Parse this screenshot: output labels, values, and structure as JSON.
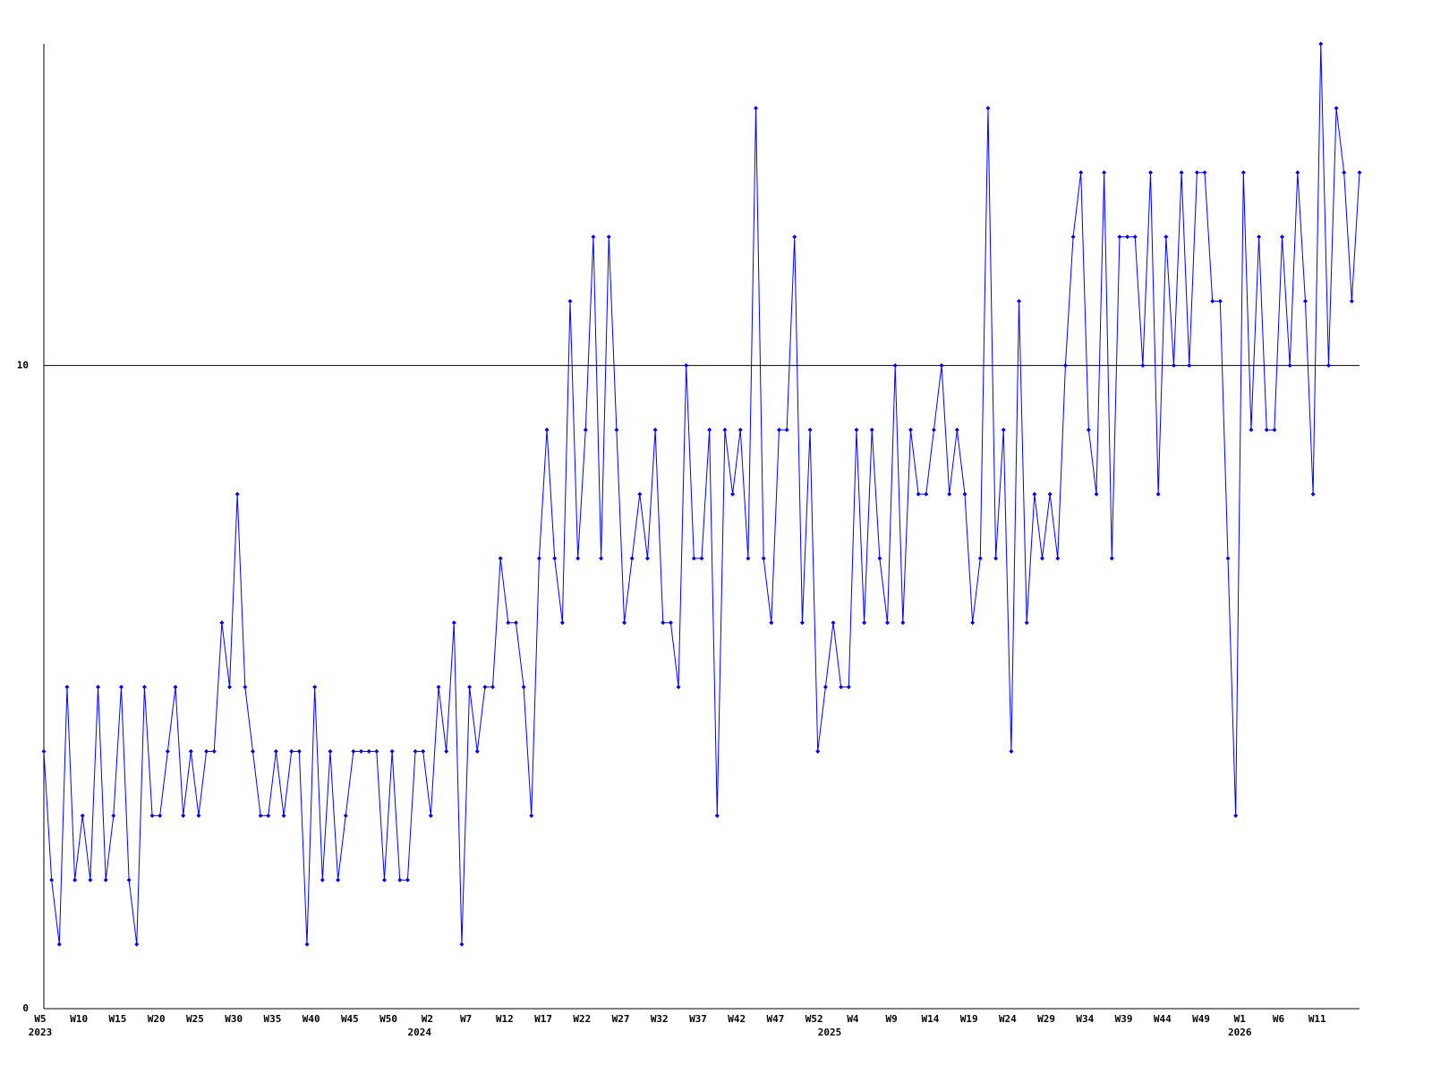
{
  "chart_data": {
    "type": "line",
    "categories": [
      "W5",
      null,
      null,
      null,
      null,
      "W10",
      null,
      null,
      null,
      null,
      "W15",
      null,
      null,
      null,
      null,
      "W20",
      null,
      null,
      null,
      null,
      "W25",
      null,
      null,
      null,
      null,
      "W30",
      null,
      null,
      null,
      null,
      "W35",
      null,
      null,
      null,
      null,
      "W40",
      null,
      null,
      null,
      null,
      "W45",
      null,
      null,
      null,
      null,
      "W50",
      null,
      null,
      null,
      null,
      "W2",
      null,
      null,
      null,
      null,
      "W7",
      null,
      null,
      null,
      null,
      "W12",
      null,
      null,
      null,
      null,
      "W17",
      null,
      null,
      null,
      null,
      "W22",
      null,
      null,
      null,
      null,
      "W27",
      null,
      null,
      null,
      null,
      "W32",
      null,
      null,
      null,
      null,
      "W37",
      null,
      null,
      null,
      null,
      "W42",
      null,
      null,
      null,
      null,
      "W47",
      null,
      null,
      null,
      null,
      "W52",
      null,
      null,
      null,
      null,
      "W4",
      null,
      null,
      null,
      null,
      "W9",
      null,
      null,
      null,
      null,
      "W14",
      null,
      null,
      null,
      null,
      "W19",
      null,
      null,
      null,
      null,
      "W24",
      null,
      null,
      null,
      null,
      "W29",
      null,
      null,
      null,
      null,
      "W34",
      null,
      null,
      null,
      null,
      "W39",
      null,
      null,
      null,
      null,
      "W44",
      null,
      null,
      null,
      null,
      "W49",
      null,
      null,
      null,
      null,
      "W1",
      null,
      null,
      null,
      null,
      "W6",
      null,
      null,
      null,
      null,
      "W11",
      null,
      null,
      null,
      null,
      null
    ],
    "year_labels": [
      "2023",
      null,
      null,
      null,
      null,
      null,
      null,
      null,
      null,
      null,
      null,
      null,
      null,
      null,
      null,
      null,
      null,
      null,
      null,
      null,
      null,
      null,
      null,
      null,
      null,
      null,
      null,
      null,
      null,
      null,
      null,
      null,
      null,
      null,
      null,
      null,
      null,
      null,
      null,
      null,
      null,
      null,
      null,
      null,
      null,
      null,
      null,
      null,
      null,
      "2024",
      null,
      null,
      null,
      null,
      null,
      null,
      null,
      null,
      null,
      null,
      null,
      null,
      null,
      null,
      null,
      null,
      null,
      null,
      null,
      null,
      null,
      null,
      null,
      null,
      null,
      null,
      null,
      null,
      null,
      null,
      null,
      null,
      null,
      null,
      null,
      null,
      null,
      null,
      null,
      null,
      null,
      null,
      null,
      null,
      null,
      null,
      null,
      null,
      null,
      null,
      null,
      null,
      "2025",
      null,
      null,
      null,
      null,
      null,
      null,
      null,
      null,
      null,
      null,
      null,
      null,
      null,
      null,
      null,
      null,
      null,
      null,
      null,
      null,
      null,
      null,
      null,
      null,
      null,
      null,
      null,
      null,
      null,
      null,
      null,
      null,
      null,
      null,
      null,
      null,
      null,
      null,
      null,
      null,
      null,
      null,
      null,
      null,
      null,
      null,
      null,
      null,
      null,
      null,
      null,
      null,
      "2026",
      null,
      null,
      null,
      null,
      null,
      null,
      null,
      null,
      null,
      null,
      null,
      null,
      null,
      null,
      null
    ],
    "values": [
      4,
      2,
      1,
      5,
      2,
      3,
      2,
      5,
      2,
      3,
      5,
      2,
      1,
      5,
      3,
      3,
      4,
      5,
      3,
      4,
      3,
      4,
      4,
      6,
      5,
      8,
      5,
      4,
      3,
      3,
      4,
      3,
      4,
      4,
      1,
      5,
      2,
      4,
      2,
      3,
      4,
      4,
      4,
      4,
      2,
      4,
      2,
      2,
      4,
      4,
      3,
      5,
      4,
      6,
      1,
      5,
      4,
      5,
      5,
      7,
      6,
      6,
      5,
      3,
      7,
      9,
      7,
      6,
      11,
      7,
      9,
      12,
      7,
      12,
      9,
      6,
      7,
      8,
      7,
      9,
      6,
      6,
      5,
      10,
      7,
      7,
      9,
      3,
      9,
      8,
      9,
      7,
      14,
      7,
      6,
      9,
      9,
      12,
      6,
      9,
      4,
      5,
      6,
      5,
      5,
      9,
      6,
      9,
      7,
      6,
      10,
      6,
      9,
      8,
      8,
      9,
      10,
      8,
      9,
      8,
      6,
      7,
      14,
      7,
      9,
      4,
      11,
      6,
      8,
      7,
      8,
      7,
      10,
      12,
      13,
      9,
      8,
      13,
      7,
      12,
      12,
      12,
      10,
      13,
      8,
      12,
      10,
      13,
      10,
      13,
      13,
      11,
      11,
      7,
      3,
      13,
      9,
      12,
      9,
      9,
      12,
      10,
      13,
      11,
      8,
      15,
      10,
      14,
      13,
      11,
      13
    ],
    "color": "#0000ff",
    "ylim": [
      0,
      15
    ],
    "yticks": [
      0,
      10
    ],
    "grid": true
  }
}
